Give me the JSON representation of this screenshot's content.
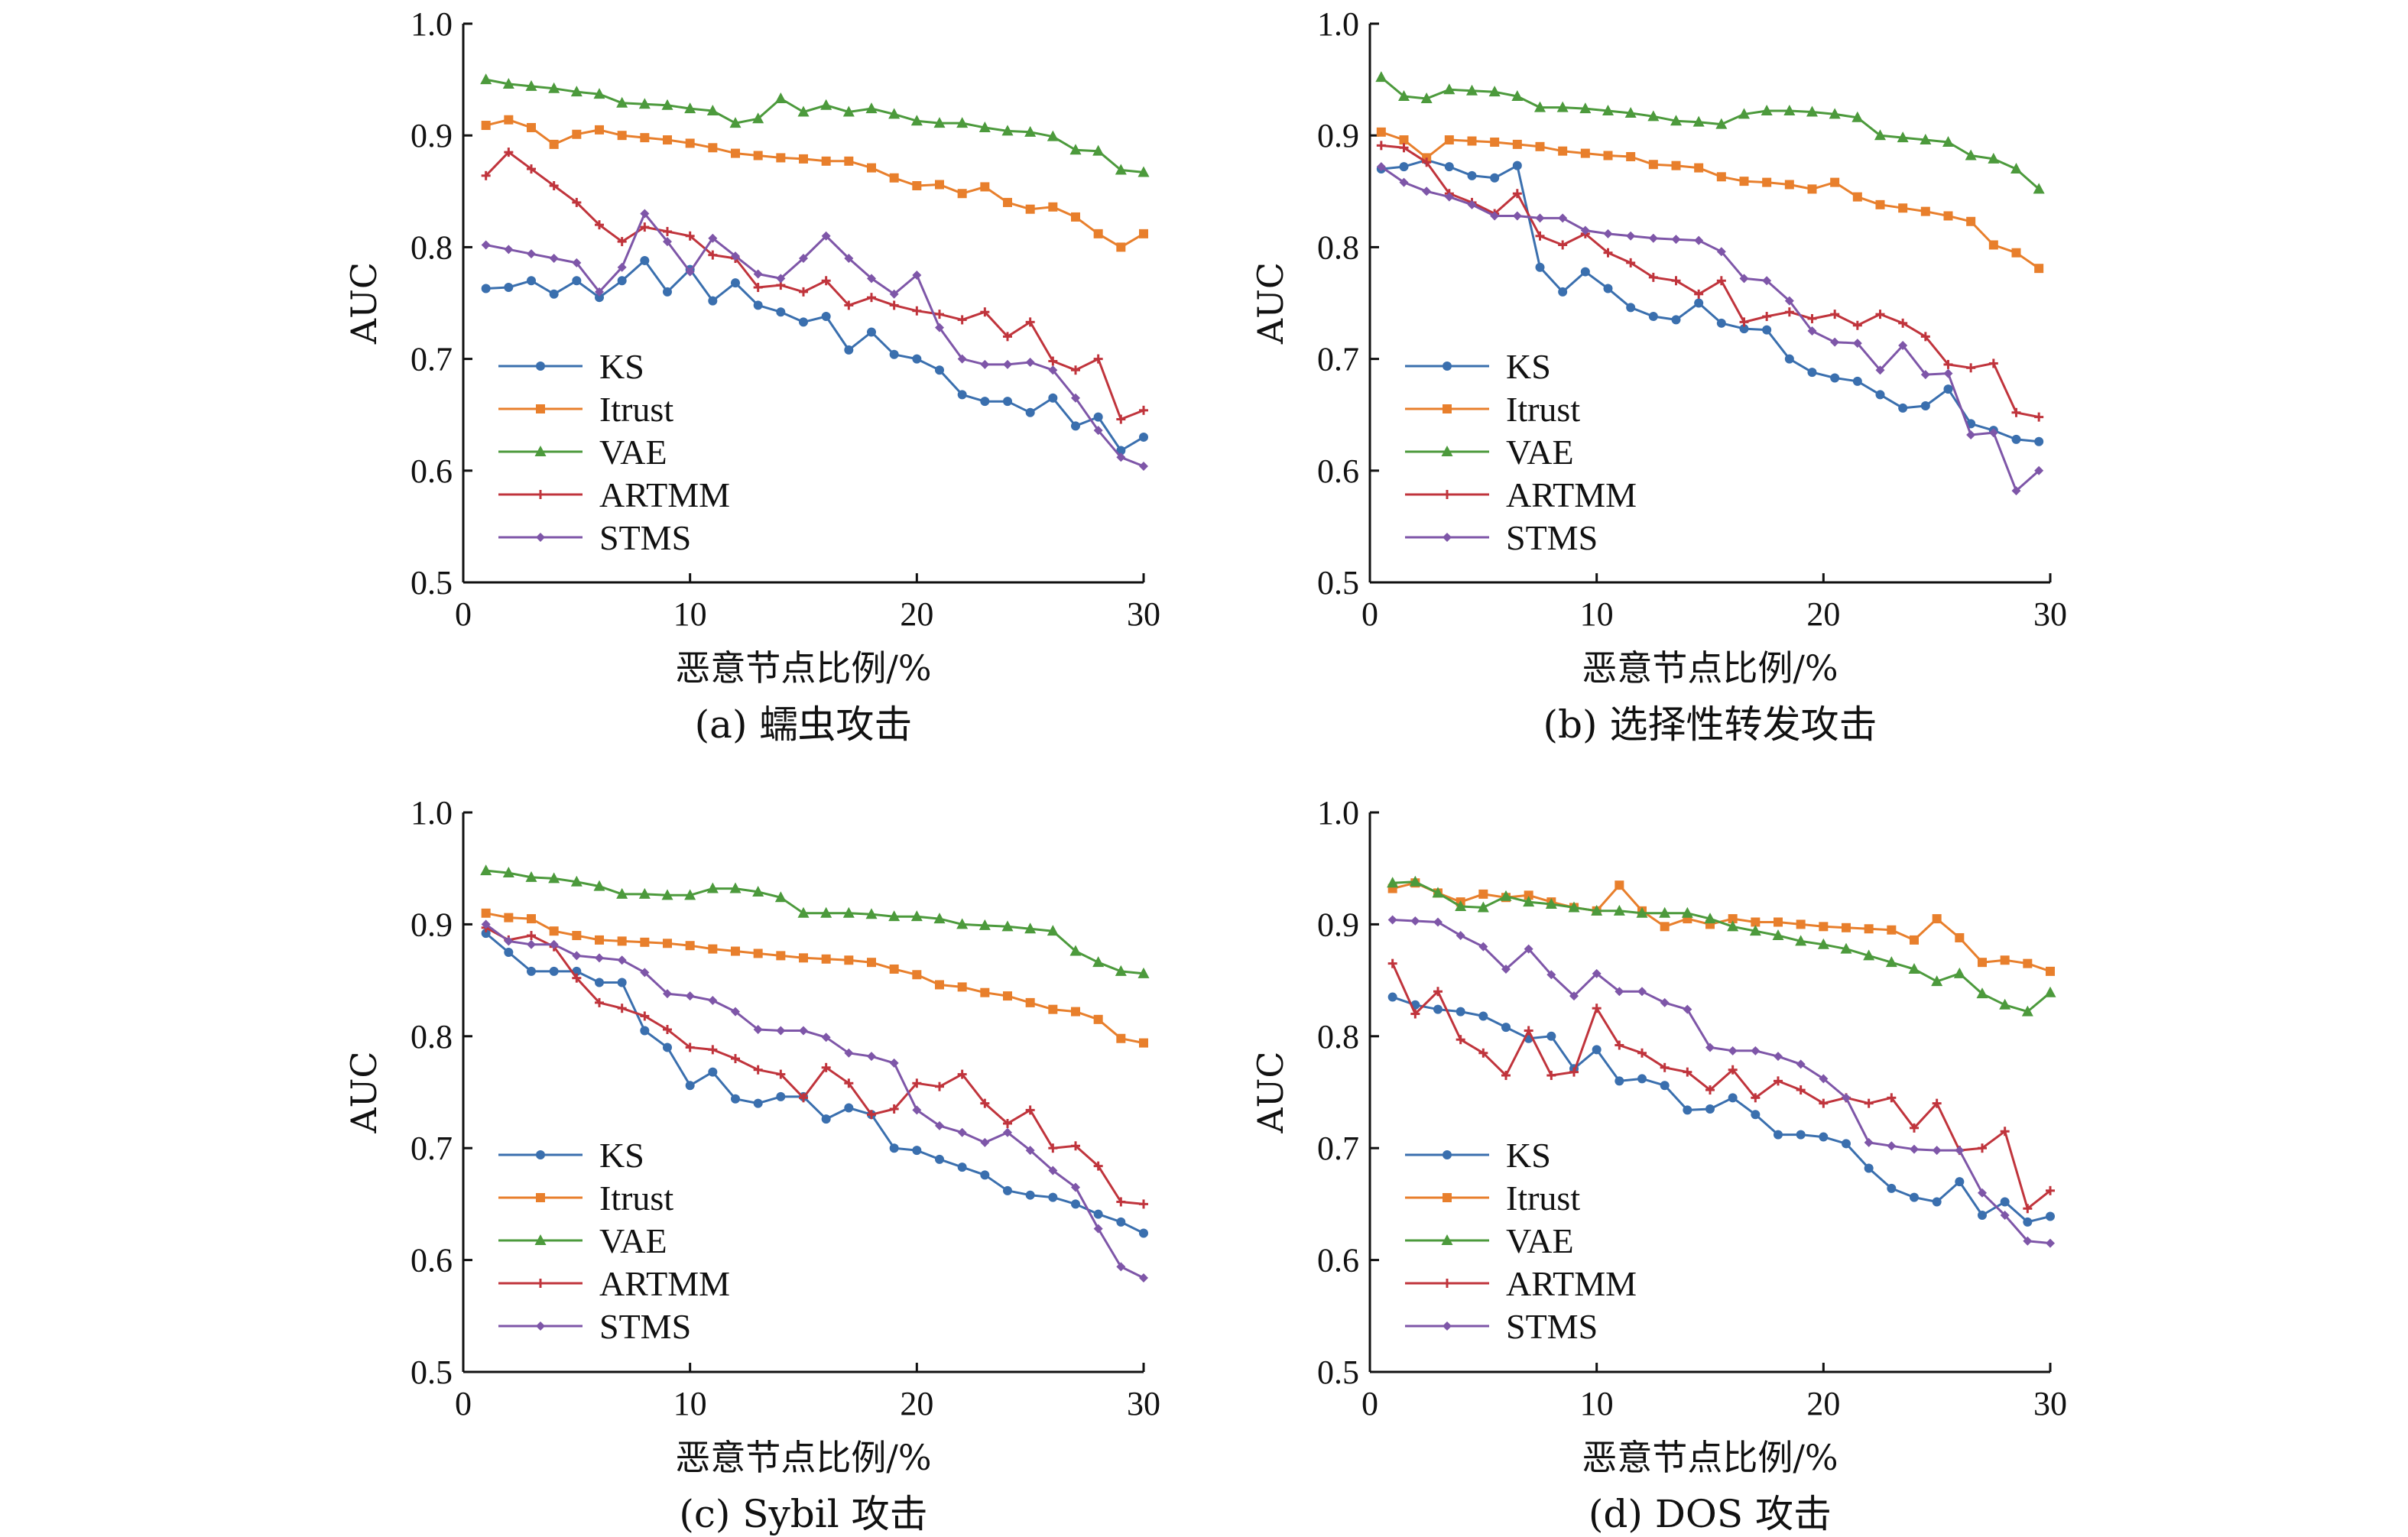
{
  "chart_data": [
    {
      "type": "line",
      "caption": "(a) 蠕虫攻击",
      "xlabel": "恶意节点比例/%",
      "ylabel": "AUC",
      "xlim": [
        0,
        30
      ],
      "ylim": [
        0.5,
        1.0
      ],
      "xticks": [
        "0",
        "10",
        "20",
        "30"
      ],
      "yticks": [
        "0.5",
        "0.6",
        "0.7",
        "0.8",
        "0.9",
        "1.0"
      ],
      "x": [
        1,
        2,
        3,
        4,
        5,
        6,
        7,
        8,
        9,
        10,
        11,
        12,
        13,
        14,
        15,
        16,
        17,
        18,
        19,
        20,
        21,
        22,
        23,
        24,
        25,
        26,
        27,
        28,
        29,
        30
      ],
      "series": [
        {
          "name": "KS",
          "color": "#3a6fae",
          "marker": "circle",
          "values": [
            0.763,
            0.764,
            0.77,
            0.758,
            0.77,
            0.755,
            0.77,
            0.788,
            0.76,
            0.78,
            0.752,
            0.768,
            0.748,
            0.742,
            0.733,
            0.738,
            0.708,
            0.724,
            0.704,
            0.7,
            0.69,
            0.668,
            0.662,
            0.662,
            0.652,
            0.665,
            0.64,
            0.648,
            0.618,
            0.63
          ]
        },
        {
          "name": "Itrust",
          "color": "#e87f2c",
          "marker": "square",
          "values": [
            0.909,
            0.914,
            0.907,
            0.892,
            0.901,
            0.905,
            0.9,
            0.898,
            0.896,
            0.893,
            0.889,
            0.884,
            0.882,
            0.88,
            0.879,
            0.877,
            0.877,
            0.871,
            0.862,
            0.855,
            0.856,
            0.848,
            0.854,
            0.84,
            0.834,
            0.836,
            0.827,
            0.812,
            0.8,
            0.812
          ]
        },
        {
          "name": "VAE",
          "color": "#4c9a3c",
          "marker": "triangle",
          "values": [
            0.95,
            0.946,
            0.944,
            0.942,
            0.939,
            0.937,
            0.929,
            0.928,
            0.927,
            0.924,
            0.922,
            0.911,
            0.915,
            0.933,
            0.921,
            0.927,
            0.921,
            0.924,
            0.919,
            0.913,
            0.911,
            0.911,
            0.907,
            0.904,
            0.903,
            0.899,
            0.887,
            0.886,
            0.869,
            0.867
          ]
        },
        {
          "name": "ARTMM",
          "color": "#c0343c",
          "marker": "plus",
          "values": [
            0.864,
            0.885,
            0.87,
            0.855,
            0.84,
            0.82,
            0.805,
            0.818,
            0.814,
            0.81,
            0.793,
            0.79,
            0.764,
            0.766,
            0.76,
            0.77,
            0.748,
            0.755,
            0.748,
            0.743,
            0.74,
            0.735,
            0.742,
            0.72,
            0.733,
            0.698,
            0.69,
            0.7,
            0.646,
            0.654
          ]
        },
        {
          "name": "STMS",
          "color": "#7e56a8",
          "marker": "diamond",
          "values": [
            0.802,
            0.798,
            0.794,
            0.79,
            0.786,
            0.76,
            0.782,
            0.83,
            0.805,
            0.778,
            0.808,
            0.792,
            0.776,
            0.772,
            0.79,
            0.81,
            0.79,
            0.772,
            0.758,
            0.775,
            0.728,
            0.7,
            0.695,
            0.695,
            0.697,
            0.69,
            0.665,
            0.636,
            0.612,
            0.604
          ]
        }
      ]
    },
    {
      "type": "line",
      "caption": "(b) 选择性转发攻击",
      "xlabel": "恶意节点比例/%",
      "ylabel": "AUC",
      "xlim": [
        0,
        30
      ],
      "ylim": [
        0.5,
        1.0
      ],
      "xticks": [
        "0",
        "10",
        "20",
        "30"
      ],
      "yticks": [
        "0.5",
        "0.6",
        "0.7",
        "0.8",
        "0.9",
        "1.0"
      ],
      "x": [
        0.5,
        1.5,
        2.5,
        3.5,
        4.5,
        5.5,
        6.5,
        7.5,
        8.5,
        9.5,
        10.5,
        11.5,
        12.5,
        13.5,
        14.5,
        15.5,
        16.5,
        17.5,
        18.5,
        19.5,
        20.5,
        21.5,
        22.5,
        23.5,
        24.5,
        25.5,
        26.5,
        27.5,
        28.5,
        29.5
      ],
      "series": [
        {
          "name": "KS",
          "color": "#3a6fae",
          "marker": "circle",
          "values": [
            0.87,
            0.872,
            0.878,
            0.872,
            0.864,
            0.862,
            0.873,
            0.782,
            0.76,
            0.778,
            0.763,
            0.746,
            0.738,
            0.735,
            0.75,
            0.732,
            0.727,
            0.726,
            0.7,
            0.688,
            0.683,
            0.68,
            0.668,
            0.656,
            0.658,
            0.673,
            0.642,
            0.636,
            0.628,
            0.626
          ]
        },
        {
          "name": "Itrust",
          "color": "#e87f2c",
          "marker": "square",
          "values": [
            0.903,
            0.896,
            0.88,
            0.896,
            0.895,
            0.894,
            0.892,
            0.89,
            0.886,
            0.884,
            0.882,
            0.881,
            0.874,
            0.873,
            0.871,
            0.863,
            0.859,
            0.858,
            0.856,
            0.852,
            0.858,
            0.845,
            0.838,
            0.835,
            0.832,
            0.828,
            0.823,
            0.802,
            0.795,
            0.781
          ]
        },
        {
          "name": "VAE",
          "color": "#4c9a3c",
          "marker": "triangle",
          "values": [
            0.952,
            0.935,
            0.933,
            0.941,
            0.94,
            0.939,
            0.935,
            0.925,
            0.925,
            0.924,
            0.922,
            0.92,
            0.917,
            0.913,
            0.912,
            0.91,
            0.919,
            0.922,
            0.922,
            0.921,
            0.919,
            0.916,
            0.9,
            0.898,
            0.896,
            0.894,
            0.882,
            0.879,
            0.87,
            0.852
          ]
        },
        {
          "name": "ARTMM",
          "color": "#c0343c",
          "marker": "plus",
          "values": [
            0.891,
            0.889,
            0.876,
            0.848,
            0.84,
            0.83,
            0.848,
            0.81,
            0.802,
            0.812,
            0.795,
            0.786,
            0.773,
            0.77,
            0.758,
            0.77,
            0.733,
            0.738,
            0.742,
            0.736,
            0.74,
            0.73,
            0.74,
            0.732,
            0.72,
            0.695,
            0.692,
            0.696,
            0.652,
            0.648
          ]
        },
        {
          "name": "STMS",
          "color": "#7e56a8",
          "marker": "diamond",
          "values": [
            0.872,
            0.858,
            0.85,
            0.845,
            0.838,
            0.828,
            0.828,
            0.826,
            0.826,
            0.815,
            0.812,
            0.81,
            0.808,
            0.807,
            0.806,
            0.796,
            0.772,
            0.77,
            0.752,
            0.725,
            0.715,
            0.714,
            0.69,
            0.712,
            0.686,
            0.687,
            0.632,
            0.634,
            0.582,
            0.6
          ]
        }
      ]
    },
    {
      "type": "line",
      "caption": "(c) Sybil 攻击",
      "xlabel": "恶意节点比例/%",
      "ylabel": "AUC",
      "xlim": [
        0,
        30
      ],
      "ylim": [
        0.5,
        1.0
      ],
      "xticks": [
        "0",
        "10",
        "20",
        "30"
      ],
      "yticks": [
        "0.5",
        "0.6",
        "0.7",
        "0.8",
        "0.9",
        "1.0"
      ],
      "x": [
        1,
        2,
        3,
        4,
        5,
        6,
        7,
        8,
        9,
        10,
        11,
        12,
        13,
        14,
        15,
        16,
        17,
        18,
        19,
        20,
        21,
        22,
        23,
        24,
        25,
        26,
        27,
        28,
        29,
        30
      ],
      "series": [
        {
          "name": "KS",
          "color": "#3a6fae",
          "marker": "circle",
          "values": [
            0.892,
            0.875,
            0.858,
            0.858,
            0.858,
            0.848,
            0.848,
            0.805,
            0.79,
            0.756,
            0.768,
            0.744,
            0.74,
            0.746,
            0.746,
            0.726,
            0.736,
            0.73,
            0.7,
            0.698,
            0.69,
            0.683,
            0.676,
            0.662,
            0.658,
            0.656,
            0.65,
            0.641,
            0.634,
            0.624
          ]
        },
        {
          "name": "Itrust",
          "color": "#e87f2c",
          "marker": "square",
          "values": [
            0.91,
            0.906,
            0.905,
            0.894,
            0.89,
            0.886,
            0.885,
            0.884,
            0.883,
            0.881,
            0.878,
            0.876,
            0.874,
            0.872,
            0.87,
            0.869,
            0.868,
            0.866,
            0.86,
            0.855,
            0.846,
            0.844,
            0.839,
            0.836,
            0.83,
            0.824,
            0.822,
            0.815,
            0.798,
            0.794
          ]
        },
        {
          "name": "VAE",
          "color": "#4c9a3c",
          "marker": "triangle",
          "values": [
            0.948,
            0.946,
            0.942,
            0.941,
            0.938,
            0.934,
            0.927,
            0.927,
            0.926,
            0.926,
            0.932,
            0.932,
            0.929,
            0.924,
            0.91,
            0.91,
            0.91,
            0.909,
            0.907,
            0.907,
            0.905,
            0.9,
            0.899,
            0.898,
            0.896,
            0.894,
            0.876,
            0.866,
            0.858,
            0.856
          ]
        },
        {
          "name": "ARTMM",
          "color": "#c0343c",
          "marker": "plus",
          "values": [
            0.897,
            0.886,
            0.89,
            0.88,
            0.852,
            0.83,
            0.825,
            0.818,
            0.806,
            0.79,
            0.788,
            0.78,
            0.77,
            0.766,
            0.745,
            0.772,
            0.758,
            0.73,
            0.735,
            0.758,
            0.755,
            0.766,
            0.74,
            0.722,
            0.734,
            0.7,
            0.702,
            0.684,
            0.652,
            0.65
          ]
        },
        {
          "name": "STMS",
          "color": "#7e56a8",
          "marker": "diamond",
          "values": [
            0.9,
            0.885,
            0.882,
            0.882,
            0.872,
            0.87,
            0.868,
            0.857,
            0.838,
            0.836,
            0.832,
            0.822,
            0.806,
            0.805,
            0.805,
            0.799,
            0.785,
            0.782,
            0.776,
            0.734,
            0.72,
            0.714,
            0.705,
            0.714,
            0.698,
            0.68,
            0.665,
            0.628,
            0.594,
            0.584
          ]
        }
      ]
    },
    {
      "type": "line",
      "caption": "(d) DOS 攻击",
      "xlabel": "恶意节点比例/%",
      "ylabel": "AUC",
      "xlim": [
        0,
        30
      ],
      "ylim": [
        0.5,
        1.0
      ],
      "xticks": [
        "0",
        "10",
        "20",
        "30"
      ],
      "yticks": [
        "0.5",
        "0.6",
        "0.7",
        "0.8",
        "0.9",
        "1.0"
      ],
      "x": [
        1,
        2,
        3,
        4,
        5,
        6,
        7,
        8,
        9,
        10,
        11,
        12,
        13,
        14,
        15,
        16,
        17,
        18,
        19,
        20,
        21,
        22,
        23,
        24,
        25,
        26,
        27,
        28,
        29,
        30
      ],
      "series": [
        {
          "name": "KS",
          "color": "#3a6fae",
          "marker": "circle",
          "values": [
            0.835,
            0.828,
            0.824,
            0.822,
            0.818,
            0.808,
            0.798,
            0.8,
            0.771,
            0.788,
            0.76,
            0.762,
            0.756,
            0.734,
            0.735,
            0.745,
            0.73,
            0.712,
            0.712,
            0.71,
            0.704,
            0.682,
            0.664,
            0.656,
            0.652,
            0.67,
            0.64,
            0.652,
            0.634,
            0.639
          ]
        },
        {
          "name": "Itrust",
          "color": "#e87f2c",
          "marker": "square",
          "values": [
            0.932,
            0.937,
            0.928,
            0.92,
            0.927,
            0.924,
            0.926,
            0.92,
            0.915,
            0.912,
            0.935,
            0.912,
            0.898,
            0.905,
            0.9,
            0.905,
            0.902,
            0.902,
            0.9,
            0.898,
            0.897,
            0.896,
            0.895,
            0.886,
            0.905,
            0.888,
            0.866,
            0.868,
            0.865,
            0.858
          ]
        },
        {
          "name": "VAE",
          "color": "#4c9a3c",
          "marker": "triangle",
          "values": [
            0.937,
            0.938,
            0.928,
            0.916,
            0.915,
            0.925,
            0.92,
            0.918,
            0.915,
            0.912,
            0.912,
            0.91,
            0.91,
            0.91,
            0.905,
            0.898,
            0.894,
            0.89,
            0.885,
            0.882,
            0.878,
            0.872,
            0.866,
            0.86,
            0.849,
            0.856,
            0.838,
            0.828,
            0.822,
            0.839
          ]
        },
        {
          "name": "ARTMM",
          "color": "#c0343c",
          "marker": "plus",
          "values": [
            0.865,
            0.82,
            0.84,
            0.797,
            0.785,
            0.765,
            0.805,
            0.765,
            0.768,
            0.825,
            0.792,
            0.785,
            0.772,
            0.768,
            0.752,
            0.77,
            0.745,
            0.76,
            0.752,
            0.74,
            0.745,
            0.74,
            0.745,
            0.718,
            0.74,
            0.698,
            0.7,
            0.715,
            0.646,
            0.662
          ]
        },
        {
          "name": "STMS",
          "color": "#7e56a8",
          "marker": "diamond",
          "values": [
            0.904,
            0.903,
            0.902,
            0.89,
            0.88,
            0.86,
            0.878,
            0.855,
            0.836,
            0.856,
            0.84,
            0.84,
            0.83,
            0.824,
            0.79,
            0.787,
            0.787,
            0.782,
            0.775,
            0.762,
            0.745,
            0.705,
            0.702,
            0.699,
            0.698,
            0.698,
            0.66,
            0.64,
            0.617,
            0.615
          ]
        }
      ]
    }
  ]
}
